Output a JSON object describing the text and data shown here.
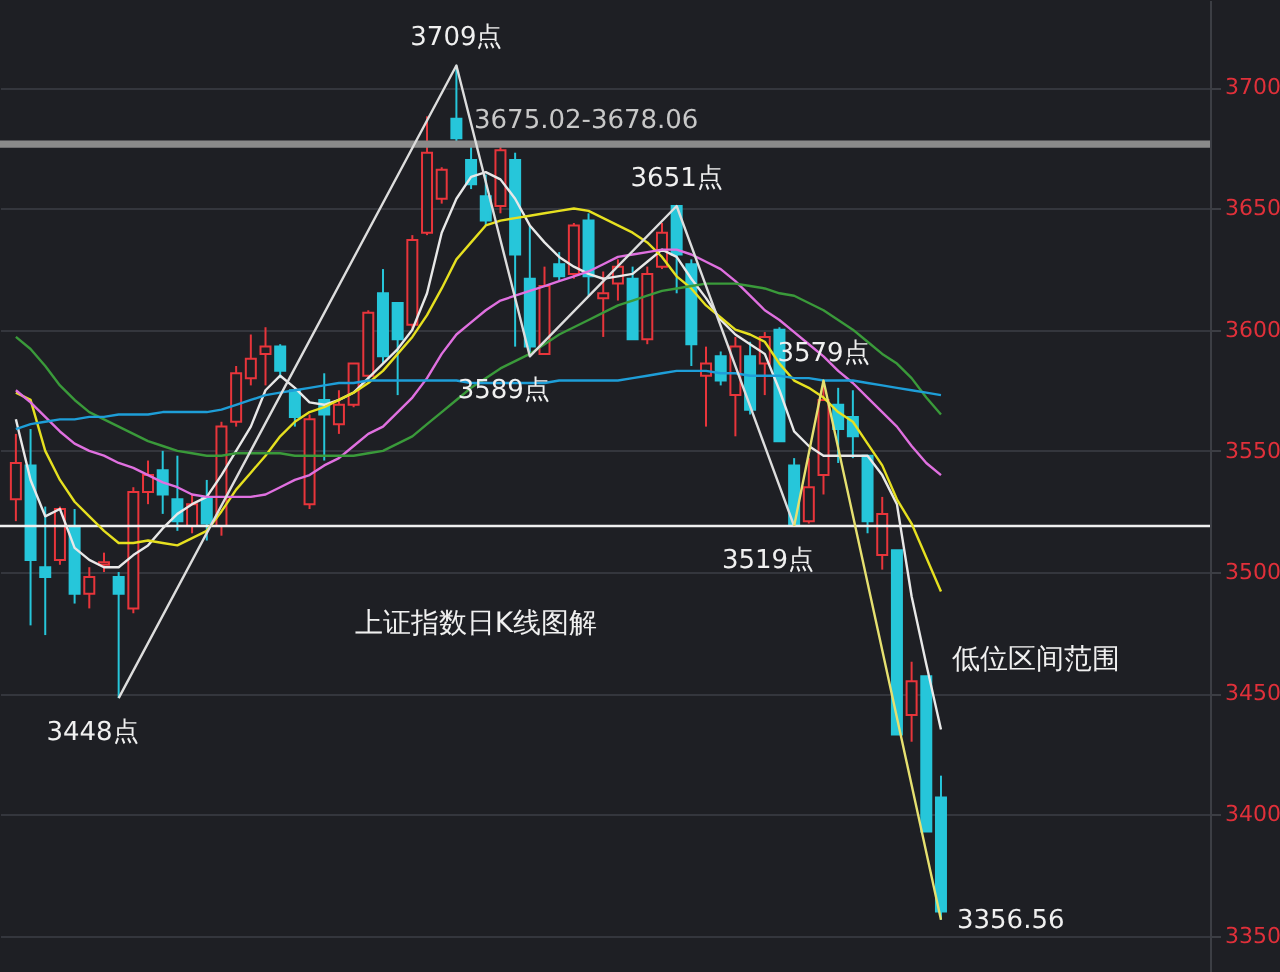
{
  "chart_data": {
    "type": "candlestick",
    "categories": [
      null,
      null,
      null,
      null,
      null,
      null,
      null,
      null,
      null,
      null,
      null,
      null,
      null,
      null,
      null,
      null,
      null,
      null,
      null,
      null,
      null,
      null,
      null,
      null,
      null,
      null,
      null,
      null,
      null,
      null,
      null,
      null,
      null,
      null,
      null,
      null,
      null,
      null,
      null,
      null,
      null,
      null,
      null,
      null,
      null,
      null,
      null,
      null,
      null,
      null,
      null,
      null,
      null,
      null,
      null,
      null,
      null,
      null,
      null,
      null,
      null,
      null,
      null,
      null
    ],
    "ohlc": [
      [
        3530,
        3557,
        3521,
        3545
      ],
      [
        3544,
        3559,
        3478,
        3505
      ],
      [
        3502,
        3527,
        3474,
        3498
      ],
      [
        3505,
        3527,
        3503,
        3526
      ],
      [
        3519,
        3526,
        3487,
        3491
      ],
      [
        3491,
        3502,
        3485,
        3498
      ],
      [
        3503,
        3508,
        3500,
        3504
      ],
      [
        3498,
        3500,
        3448,
        3491
      ],
      [
        3485,
        3535,
        3483,
        3533
      ],
      [
        3533,
        3546,
        3528,
        3540
      ],
      [
        3542,
        3550,
        3524,
        3532
      ],
      [
        3530,
        3548,
        3517,
        3521
      ],
      [
        3519,
        3532,
        3516,
        3528
      ],
      [
        3531,
        3538,
        3513,
        3520
      ],
      [
        3519,
        3562,
        3515,
        3560
      ],
      [
        3562,
        3585,
        3560,
        3582
      ],
      [
        3580,
        3598,
        3577,
        3588
      ],
      [
        3590,
        3601,
        3577,
        3593
      ],
      [
        3593,
        3594,
        3580,
        3583
      ],
      [
        3575,
        3575,
        3560,
        3564
      ],
      [
        3528,
        3565,
        3526,
        3563
      ],
      [
        3571,
        3582,
        3546,
        3565
      ],
      [
        3561,
        3575,
        3557,
        3569
      ],
      [
        3569,
        3586,
        3568,
        3586
      ],
      [
        3581,
        3608,
        3579,
        3607
      ],
      [
        3615,
        3625,
        3586,
        3589
      ],
      [
        3611,
        3611,
        3573,
        3596
      ],
      [
        3602,
        3639,
        3600,
        3637
      ],
      [
        3640,
        3688,
        3639,
        3673
      ],
      [
        3654,
        3667,
        3652,
        3666
      ],
      [
        3687,
        3709,
        3677,
        3679
      ],
      [
        3670,
        3676,
        3658,
        3660
      ],
      [
        3655,
        3664,
        3643,
        3645
      ],
      [
        3651,
        3676,
        3648,
        3674
      ],
      [
        3670,
        3673,
        3593,
        3631
      ],
      [
        3621,
        3643,
        3589,
        3593
      ],
      [
        3590,
        3626,
        3590,
        3618
      ],
      [
        3627,
        3632,
        3620,
        3622
      ],
      [
        3623,
        3644,
        3621,
        3643
      ],
      [
        3645,
        3648,
        3614,
        3622
      ],
      [
        3613,
        3624,
        3597,
        3615
      ],
      [
        3619,
        3629,
        3612,
        3626
      ],
      [
        3621,
        3626,
        3596,
        3596
      ],
      [
        3596,
        3626,
        3594,
        3623
      ],
      [
        3626,
        3644,
        3625,
        3640
      ],
      [
        3651,
        3651,
        3615,
        3631
      ],
      [
        3627,
        3629,
        3585,
        3594
      ],
      [
        3581,
        3593,
        3560,
        3586
      ],
      [
        3589,
        3591,
        3577,
        3579
      ],
      [
        3573,
        3597,
        3556,
        3593
      ],
      [
        3589,
        3595,
        3565,
        3567
      ],
      [
        3586,
        3599,
        3573,
        3597
      ],
      [
        3600,
        3601,
        3554,
        3554
      ],
      [
        3544,
        3547,
        3519,
        3519
      ],
      [
        3521,
        3547,
        3520,
        3535
      ],
      [
        3540,
        3579,
        3532,
        3571
      ],
      [
        3569,
        3576,
        3545,
        3559
      ],
      [
        3564,
        3575,
        3547,
        3556
      ],
      [
        3548,
        3548,
        3516,
        3521
      ],
      [
        3507,
        3531,
        3501,
        3524
      ],
      [
        3509,
        3509,
        3433,
        3433
      ],
      [
        3441,
        3463,
        3430,
        3455
      ],
      [
        3457,
        3457,
        3393,
        3393
      ],
      [
        3407,
        3416,
        3356.56,
        3360
      ]
    ],
    "colors": [
      "#e8353b",
      "#26c6da",
      "#26c6da",
      "#e8353b",
      "#26c6da",
      "#e8353b",
      "#e8353b",
      "#26c6da",
      "#e8353b",
      "#e8353b",
      "#26c6da",
      "#26c6da",
      "#e8353b",
      "#26c6da",
      "#e8353b",
      "#e8353b",
      "#e8353b",
      "#e8353b",
      "#26c6da",
      "#26c6da",
      "#e8353b",
      "#26c6da",
      "#e8353b",
      "#e8353b",
      "#e8353b",
      "#26c6da",
      "#26c6da",
      "#e8353b",
      "#e8353b",
      "#e8353b",
      "#26c6da",
      "#26c6da",
      "#26c6da",
      "#e8353b",
      "#26c6da",
      "#26c6da",
      "#e8353b",
      "#26c6da",
      "#e8353b",
      "#26c6da",
      "#e8353b",
      "#e8353b",
      "#26c6da",
      "#e8353b",
      "#e8353b",
      "#26c6da",
      "#26c6da",
      "#e8353b",
      "#26c6da",
      "#e8353b",
      "#26c6da",
      "#e8353b",
      "#26c6da",
      "#26c6da",
      "#e8353b",
      "#e8353b",
      "#26c6da",
      "#26c6da",
      "#26c6da",
      "#e8353b",
      "#26c6da",
      "#e8353b",
      "#26c6da",
      "#26c6da"
    ],
    "series": [
      {
        "type": "line",
        "color": "#e8e8e8",
        "values": [
          3563,
          3538,
          3523,
          3526,
          3510,
          3505,
          3502,
          3502,
          3507,
          3511,
          3518,
          3524,
          3528,
          3531,
          3540,
          3550,
          3560,
          3575,
          3581,
          3576,
          3570,
          3569,
          3571,
          3574,
          3580,
          3586,
          3592,
          3600,
          3615,
          3640,
          3654,
          3663,
          3665,
          3662,
          3654,
          3643,
          3636,
          3630,
          3626,
          3623,
          3621,
          3622,
          3623,
          3628,
          3633,
          3630,
          3621,
          3613,
          3604,
          3598,
          3594,
          3590,
          3575,
          3558,
          3552,
          3548,
          3548,
          3548,
          3548,
          3540,
          3528,
          3490,
          3462,
          3435
        ]
      },
      {
        "type": "line",
        "color": "#e6e020",
        "values": [
          3574,
          3571,
          3550,
          3538,
          3529,
          3523,
          3517,
          3512,
          3512,
          3513,
          3512,
          3511,
          3514,
          3517,
          3525,
          3534,
          3541,
          3548,
          3556,
          3562,
          3566,
          3568,
          3571,
          3574,
          3578,
          3583,
          3590,
          3597,
          3606,
          3617,
          3629,
          3636,
          3643,
          3645,
          3646,
          3647,
          3648,
          3649,
          3650,
          3649,
          3646,
          3643,
          3640,
          3636,
          3630,
          3622,
          3617,
          3610,
          3605,
          3600,
          3598,
          3595,
          3586,
          3579,
          3576,
          3572,
          3566,
          3562,
          3553,
          3544,
          3530,
          3520,
          3506,
          3492
        ]
      },
      {
        "type": "line",
        "color": "#e070e0",
        "values": [
          3575,
          3570,
          3564,
          3558,
          3553,
          3550,
          3548,
          3545,
          3543,
          3540,
          3537,
          3535,
          3532,
          3531,
          3531,
          3531,
          3531,
          3532,
          3535,
          3538,
          3540,
          3544,
          3547,
          3552,
          3557,
          3560,
          3566,
          3572,
          3580,
          3590,
          3598,
          3603,
          3608,
          3612,
          3614,
          3616,
          3618,
          3620,
          3622,
          3624,
          3627,
          3630,
          3631,
          3632,
          3633,
          3633,
          3631,
          3628,
          3625,
          3620,
          3614,
          3608,
          3604,
          3599,
          3594,
          3589,
          3583,
          3578,
          3572,
          3566,
          3560,
          3552,
          3545,
          3540
        ]
      },
      {
        "type": "line",
        "color": "#3a9a3a",
        "values": [
          3597,
          3592,
          3585,
          3577,
          3571,
          3566,
          3563,
          3560,
          3557,
          3554,
          3552,
          3550,
          3549,
          3548,
          3548,
          3549,
          3549,
          3549,
          3549,
          3548,
          3548,
          3548,
          3548,
          3548,
          3549,
          3550,
          3553,
          3556,
          3561,
          3566,
          3571,
          3576,
          3580,
          3584,
          3587,
          3590,
          3594,
          3598,
          3601,
          3604,
          3607,
          3610,
          3612,
          3614,
          3616,
          3617,
          3618,
          3619,
          3619,
          3619,
          3618,
          3617,
          3615,
          3614,
          3611,
          3608,
          3604,
          3600,
          3595,
          3590,
          3586,
          3580,
          3572,
          3565
        ]
      },
      {
        "type": "line",
        "color": "#1e9ed8",
        "values": [
          3559,
          3561,
          3562,
          3563,
          3563,
          3564,
          3564,
          3565,
          3565,
          3565,
          3566,
          3566,
          3566,
          3566,
          3567,
          3569,
          3571,
          3573,
          3574,
          3575,
          3576,
          3577,
          3578,
          3578,
          3579,
          3579,
          3579,
          3579,
          3579,
          3579,
          3579,
          3578,
          3578,
          3578,
          3578,
          3578,
          3578,
          3579,
          3579,
          3579,
          3579,
          3579,
          3580,
          3581,
          3582,
          3583,
          3583,
          3583,
          3582,
          3582,
          3581,
          3581,
          3581,
          3580,
          3580,
          3579,
          3579,
          3579,
          3578,
          3577,
          3576,
          3575,
          3574,
          3573
        ]
      },
      {
        "type": "line",
        "color": "#dddddd",
        "values": [
          null,
          null,
          null,
          null,
          null,
          null,
          null,
          3448,
          null,
          null,
          null,
          null,
          null,
          null,
          null,
          null,
          null,
          null,
          null,
          null,
          null,
          null,
          null,
          null,
          null,
          null,
          null,
          null,
          null,
          null,
          3709,
          null,
          null,
          null,
          null,
          3589,
          null,
          null,
          null,
          null,
          null,
          null,
          null,
          null,
          null,
          3651,
          null,
          null,
          null,
          null,
          null,
          null,
          null,
          3519,
          null,
          null,
          null,
          null,
          null,
          null,
          null,
          null,
          null,
          null
        ],
        "value_labels": [
          null,
          null,
          null,
          null,
          null,
          null,
          null,
          "3448点",
          null,
          null,
          null,
          null,
          null,
          null,
          null,
          null,
          null,
          null,
          null,
          null,
          null,
          null,
          null,
          null,
          null,
          null,
          null,
          null,
          null,
          null,
          "3709点",
          null,
          null,
          null,
          null,
          "3589点",
          null,
          null,
          null,
          null,
          null,
          null,
          null,
          null,
          null,
          "3651点",
          null,
          null,
          null,
          null,
          null,
          null,
          null,
          "3519点",
          null,
          null,
          null,
          null,
          null,
          null,
          null,
          null,
          null,
          null
        ]
      },
      {
        "type": "line",
        "color": "#e6e070",
        "values": [
          null,
          null,
          null,
          null,
          null,
          null,
          null,
          null,
          null,
          null,
          null,
          null,
          null,
          null,
          null,
          null,
          null,
          null,
          null,
          null,
          null,
          null,
          null,
          null,
          null,
          null,
          null,
          null,
          null,
          null,
          null,
          null,
          null,
          null,
          null,
          null,
          null,
          null,
          null,
          null,
          null,
          null,
          null,
          null,
          null,
          null,
          null,
          null,
          null,
          null,
          null,
          null,
          null,
          3519,
          null,
          3579,
          null,
          null,
          null,
          null,
          null,
          null,
          null,
          3356.56
        ],
        "value_labels": [
          null,
          null,
          null,
          null,
          null,
          null,
          null,
          null,
          null,
          null,
          null,
          null,
          null,
          null,
          null,
          null,
          null,
          null,
          null,
          null,
          null,
          null,
          null,
          null,
          null,
          null,
          null,
          null,
          null,
          null,
          null,
          null,
          null,
          null,
          null,
          null,
          null,
          null,
          null,
          null,
          null,
          null,
          null,
          null,
          null,
          null,
          null,
          null,
          null,
          null,
          null,
          null,
          null,
          null,
          null,
          "3579点",
          null,
          null,
          null,
          null,
          null,
          null,
          null,
          "3356.56"
        ]
      }
    ],
    "ylim": [
      3335,
      3736
    ],
    "yticks": [
      3350,
      3400,
      3450,
      3500,
      3550,
      3600,
      3650,
      3700
    ],
    "grid": "y",
    "tick_labels": "y",
    "ref_lines": [
      {
        "axis": "y",
        "value": 3519,
        "color": "#f0f0f0"
      }
    ],
    "bands": [
      {
        "axis": "y",
        "from": 3675.02,
        "to": 3678.06,
        "label": "3675.02-3678.06",
        "color": "#8a8a8a"
      }
    ],
    "annotations": [
      "上证指数日K线图解",
      "低位区间范围"
    ]
  }
}
